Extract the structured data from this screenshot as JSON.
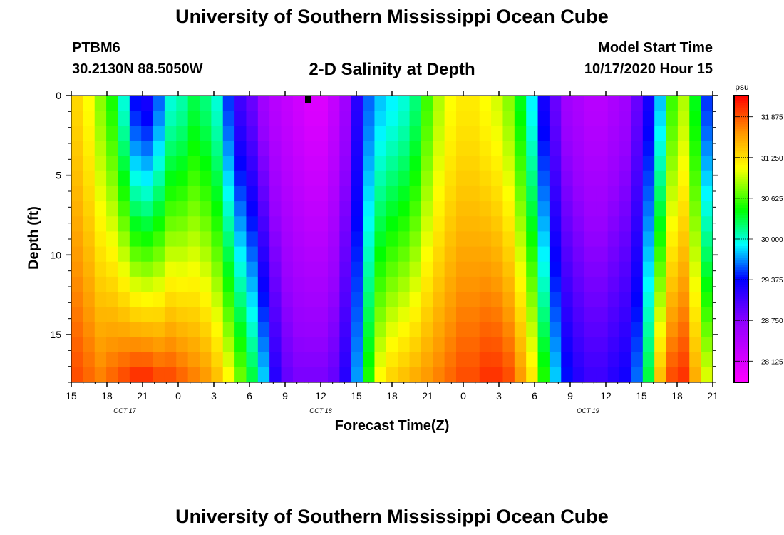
{
  "header": {
    "title_top": "University of Southern Mississippi Ocean Cube",
    "title_bottom": "University of Southern Mississippi Ocean Cube",
    "station": "PTBM6",
    "coords": "30.2130N 88.5050W",
    "chart_title": "2-D Salinity at Depth",
    "model_start_label": "Model Start Time",
    "model_start_value": "10/17/2020 Hour 15"
  },
  "chart_data": {
    "type": "heatmap",
    "title": "2-D Salinity at Depth",
    "xlabel": "Forecast Time(Z)",
    "ylabel": "Depth (ft)",
    "xlim": [
      0,
      54
    ],
    "ylim": [
      0,
      18
    ],
    "x_ticks": [
      {
        "hour": 0,
        "label": "15"
      },
      {
        "hour": 3,
        "label": "18"
      },
      {
        "hour": 6,
        "label": "21"
      },
      {
        "hour": 9,
        "label": "0"
      },
      {
        "hour": 12,
        "label": "3"
      },
      {
        "hour": 15,
        "label": "6"
      },
      {
        "hour": 18,
        "label": "9"
      },
      {
        "hour": 21,
        "label": "12"
      },
      {
        "hour": 24,
        "label": "15"
      },
      {
        "hour": 27,
        "label": "18"
      },
      {
        "hour": 30,
        "label": "21"
      },
      {
        "hour": 33,
        "label": "0"
      },
      {
        "hour": 36,
        "label": "3"
      },
      {
        "hour": 39,
        "label": "6"
      },
      {
        "hour": 42,
        "label": "9"
      },
      {
        "hour": 45,
        "label": "12"
      },
      {
        "hour": 48,
        "label": "15"
      },
      {
        "hour": 51,
        "label": "18"
      },
      {
        "hour": 54,
        "label": "21"
      }
    ],
    "date_labels": [
      {
        "hour": 4.5,
        "label": "OCT 17"
      },
      {
        "hour": 21,
        "label": "OCT 18"
      },
      {
        "hour": 43.5,
        "label": "OCT 19"
      }
    ],
    "y_ticks": [
      {
        "depth": 0,
        "label": "0"
      },
      {
        "depth": 5,
        "label": "5"
      },
      {
        "depth": 10,
        "label": "10"
      },
      {
        "depth": 15,
        "label": "15"
      }
    ],
    "colorbar": {
      "unit": "psu",
      "min": 27.8,
      "max": 32.2,
      "ticks": [
        "31.875",
        "31.250",
        "30.625",
        "30.000",
        "29.375",
        "28.750",
        "28.125"
      ]
    },
    "cols": [
      0,
      1,
      2,
      3,
      4,
      5,
      6,
      7,
      8,
      9,
      10,
      11,
      12,
      13,
      14,
      15,
      16,
      17,
      18,
      19,
      20,
      21,
      22,
      23,
      24,
      25,
      26,
      27,
      28,
      29,
      30,
      31,
      32,
      33,
      34,
      35,
      36,
      37,
      38,
      39,
      40,
      41,
      42,
      43,
      44,
      45,
      46,
      47,
      48,
      49,
      50,
      51,
      52,
      53,
      54
    ],
    "rows": [
      0,
      1,
      2,
      3,
      4,
      5,
      6,
      7,
      8,
      9,
      10,
      11,
      12,
      13,
      14,
      15,
      16,
      17,
      18
    ],
    "columns": [
      {
        "h": 0,
        "top": 31.3,
        "bot": 31.9
      },
      {
        "h": 1,
        "top": 31.1,
        "bot": 31.8
      },
      {
        "h": 2,
        "top": 30.8,
        "bot": 31.7
      },
      {
        "h": 3,
        "top": 30.5,
        "bot": 31.8
      },
      {
        "h": 4,
        "top": 30.0,
        "bot": 31.9
      },
      {
        "h": 5,
        "top": 29.4,
        "bot": 32.0
      },
      {
        "h": 6,
        "top": 29.3,
        "bot": 32.0
      },
      {
        "h": 7,
        "top": 29.6,
        "bot": 31.9
      },
      {
        "h": 8,
        "top": 30.0,
        "bot": 31.9
      },
      {
        "h": 9,
        "top": 30.1,
        "bot": 31.8
      },
      {
        "h": 10,
        "top": 30.3,
        "bot": 31.7
      },
      {
        "h": 11,
        "top": 30.2,
        "bot": 31.6
      },
      {
        "h": 12,
        "top": 30.0,
        "bot": 31.4
      },
      {
        "h": 13,
        "top": 29.5,
        "bot": 31.1
      },
      {
        "h": 14,
        "top": 29.1,
        "bot": 30.7
      },
      {
        "h": 15,
        "top": 28.9,
        "bot": 30.3
      },
      {
        "h": 16,
        "top": 28.6,
        "bot": 29.8
      },
      {
        "h": 17,
        "top": 28.4,
        "bot": 29.2
      },
      {
        "h": 18,
        "top": 28.3,
        "bot": 28.9
      },
      {
        "h": 19,
        "top": 28.2,
        "bot": 28.8
      },
      {
        "h": 20,
        "top": 28.1,
        "bot": 28.8
      },
      {
        "h": 21,
        "top": 28.1,
        "bot": 28.8
      },
      {
        "h": 22,
        "top": 28.3,
        "bot": 28.9
      },
      {
        "h": 23,
        "top": 28.6,
        "bot": 29.2
      },
      {
        "h": 24,
        "top": 29.2,
        "bot": 29.7
      },
      {
        "h": 25,
        "top": 29.6,
        "bot": 30.5
      },
      {
        "h": 26,
        "top": 29.8,
        "bot": 31.1
      },
      {
        "h": 27,
        "top": 29.9,
        "bot": 31.3
      },
      {
        "h": 28,
        "top": 30.0,
        "bot": 31.4
      },
      {
        "h": 29,
        "top": 30.2,
        "bot": 31.5
      },
      {
        "h": 30,
        "top": 30.6,
        "bot": 31.6
      },
      {
        "h": 31,
        "top": 30.9,
        "bot": 31.7
      },
      {
        "h": 32,
        "top": 31.1,
        "bot": 31.8
      },
      {
        "h": 33,
        "top": 31.2,
        "bot": 31.9
      },
      {
        "h": 34,
        "top": 31.2,
        "bot": 31.9
      },
      {
        "h": 35,
        "top": 31.1,
        "bot": 32.0
      },
      {
        "h": 36,
        "top": 31.0,
        "bot": 32.0
      },
      {
        "h": 37,
        "top": 30.8,
        "bot": 31.9
      },
      {
        "h": 38,
        "top": 30.4,
        "bot": 31.6
      },
      {
        "h": 39,
        "top": 29.9,
        "bot": 31.2
      },
      {
        "h": 40,
        "top": 29.3,
        "bot": 30.5
      },
      {
        "h": 41,
        "top": 28.9,
        "bot": 29.8
      },
      {
        "h": 42,
        "top": 28.6,
        "bot": 29.4
      },
      {
        "h": 43,
        "top": 28.5,
        "bot": 29.2
      },
      {
        "h": 44,
        "top": 28.4,
        "bot": 29.1
      },
      {
        "h": 45,
        "top": 28.4,
        "bot": 29.1
      },
      {
        "h": 46,
        "top": 28.5,
        "bot": 29.2
      },
      {
        "h": 47,
        "top": 28.6,
        "bot": 29.3
      },
      {
        "h": 48,
        "top": 28.9,
        "bot": 29.6
      },
      {
        "h": 49,
        "top": 29.3,
        "bot": 30.3
      },
      {
        "h": 50,
        "top": 29.8,
        "bot": 31.4
      },
      {
        "h": 51,
        "top": 30.6,
        "bot": 31.9
      },
      {
        "h": 52,
        "top": 30.9,
        "bot": 32.0
      },
      {
        "h": 53,
        "top": 30.4,
        "bot": 31.5
      },
      {
        "h": 54,
        "top": 29.5,
        "bot": 31.0
      }
    ]
  }
}
